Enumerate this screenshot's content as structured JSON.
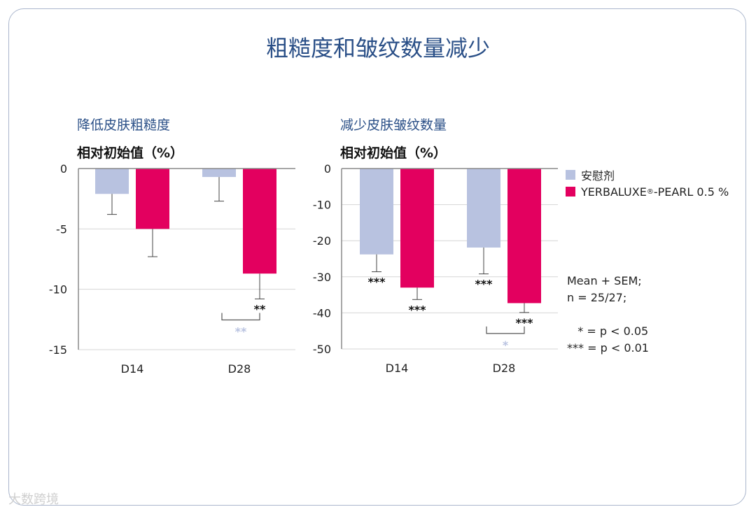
{
  "title": "粗糙度和皱纹数量减少",
  "colors": {
    "placebo": "#b8c2e0",
    "active": "#e3005f",
    "axis": "#6f6f6f",
    "brand": "#2a4f87"
  },
  "legend": {
    "placebo": "安慰剂",
    "active_main": "YERBALUXE",
    "active_reg": "®",
    "active_rest": "-PEARL 0.5 %"
  },
  "notes": {
    "line1": "Mean + SEM;",
    "line2": "n = 25/27;",
    "line3": "   * = p < 0.05",
    "line4": "*** = p < 0.01"
  },
  "watermark": "大数跨境",
  "chart_data": [
    {
      "type": "bar",
      "title": "降低皮肤粗糙度",
      "ylabel": "相对初始值（%）",
      "categories": [
        "D14",
        "D28"
      ],
      "ylim": [
        -15,
        0
      ],
      "yticks": [
        0,
        -5,
        -10,
        -15
      ],
      "series": [
        {
          "name": "安慰剂",
          "values": [
            -2.1,
            -0.7
          ],
          "error": [
            1.7,
            2.0
          ],
          "sig": [
            "",
            ""
          ]
        },
        {
          "name": "YERBALUXE®-PEARL 0.5 %",
          "values": [
            -5.0,
            -8.7
          ],
          "error": [
            2.3,
            2.1
          ],
          "sig": [
            "",
            "**"
          ]
        }
      ],
      "comparison": {
        "category": "D28",
        "label": "**"
      }
    },
    {
      "type": "bar",
      "title": "减少皮肤皱纹数量",
      "ylabel": "相对初始值（%）",
      "categories": [
        "D14",
        "D28"
      ],
      "ylim": [
        -50,
        0
      ],
      "yticks": [
        0,
        -10,
        -20,
        -30,
        -40,
        -50
      ],
      "series": [
        {
          "name": "安慰剂",
          "values": [
            -23.8,
            -21.9
          ],
          "error": [
            4.8,
            7.3
          ],
          "sig": [
            "***",
            "***"
          ]
        },
        {
          "name": "YERBALUXE®-PEARL 0.5 %",
          "values": [
            -33.0,
            -37.3
          ],
          "error": [
            3.3,
            2.6
          ],
          "sig": [
            "***",
            "***"
          ]
        }
      ],
      "comparison": {
        "category": "D28",
        "label": "*"
      }
    }
  ]
}
